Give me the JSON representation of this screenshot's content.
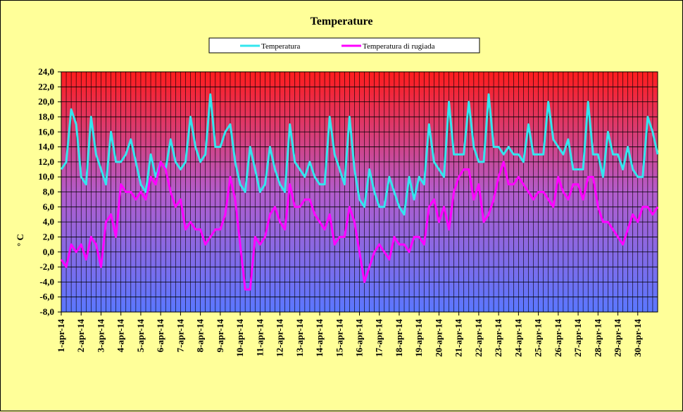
{
  "chart_data": {
    "type": "line",
    "title": "Temperature",
    "ylabel": "° C",
    "xlabel": "",
    "ylim": [
      -8,
      24
    ],
    "y_ticks": [
      "24,0",
      "22,0",
      "20,0",
      "18,0",
      "16,0",
      "14,0",
      "12,0",
      "10,0",
      "8,0",
      "6,0",
      "4,0",
      "2,0",
      "0,0",
      "-2,0",
      "-4,0",
      "-6,0",
      "-8,0"
    ],
    "categories": [
      "1-apr-14",
      "2-apr-14",
      "3-apr-14",
      "4-apr-14",
      "5-apr-14",
      "6-apr-14",
      "7-apr-14",
      "8-apr-14",
      "9-apr-14",
      "10-apr-14",
      "11-apr-14",
      "12-apr-14",
      "13-apr-14",
      "14-apr-14",
      "15-apr-14",
      "16-apr-14",
      "17-apr-14",
      "18-apr-14",
      "19-apr-14",
      "20-apr-14",
      "21-apr-14",
      "22-apr-14",
      "23-apr-14",
      "24-apr-14",
      "25-apr-14",
      "26-apr-14",
      "27-apr-14",
      "28-apr-14",
      "29-apr-14",
      "30-apr-14"
    ],
    "grid": true,
    "legend_position": "top-center",
    "series": [
      {
        "name": "Temperatura",
        "color": "#33e6ee",
        "x": [
          1,
          1.25,
          1.5,
          1.75,
          2,
          2.25,
          2.5,
          2.75,
          3,
          3.25,
          3.5,
          3.75,
          4,
          4.25,
          4.5,
          4.75,
          5,
          5.25,
          5.5,
          5.75,
          6,
          6.25,
          6.5,
          6.75,
          7,
          7.25,
          7.5,
          7.75,
          8,
          8.25,
          8.5,
          8.75,
          9,
          9.25,
          9.5,
          9.75,
          10,
          10.25,
          10.5,
          10.75,
          11,
          11.25,
          11.5,
          11.75,
          12,
          12.25,
          12.5,
          12.75,
          13,
          13.25,
          13.5,
          13.75,
          14,
          14.25,
          14.5,
          14.75,
          15,
          15.25,
          15.5,
          15.75,
          16,
          16.25,
          16.5,
          16.75,
          17,
          17.25,
          17.5,
          17.75,
          18,
          18.25,
          18.5,
          18.75,
          19,
          19.25,
          19.5,
          19.75,
          20,
          20.25,
          20.5,
          20.75,
          21,
          21.25,
          21.5,
          21.75,
          22,
          22.25,
          22.5,
          22.75,
          23,
          23.25,
          23.5,
          23.75,
          24,
          24.25,
          24.5,
          24.75,
          25,
          25.25,
          25.5,
          25.75,
          26,
          26.25,
          26.5,
          26.75,
          27,
          27.25,
          27.5,
          27.75,
          28,
          28.25,
          28.5,
          28.75,
          29,
          29.25,
          29.5,
          29.75,
          30,
          30.25,
          30.5,
          30.75,
          31
        ],
        "values": [
          11,
          12,
          19,
          17,
          10,
          9,
          18,
          13,
          11,
          9,
          16,
          12,
          12,
          13,
          15,
          12,
          9,
          8,
          13,
          10,
          12,
          11,
          15,
          12,
          11,
          12,
          18,
          14,
          12,
          13,
          21,
          14,
          14,
          16,
          17,
          12,
          9,
          8,
          14,
          11,
          8,
          9,
          14,
          11,
          9,
          8,
          17,
          12,
          11,
          10,
          12,
          10,
          9,
          9,
          18,
          13,
          11,
          9,
          18,
          11,
          7,
          6,
          11,
          8,
          6,
          6,
          10,
          8,
          6,
          5,
          10,
          7,
          10,
          9,
          17,
          12,
          11,
          10,
          20,
          13,
          13,
          13,
          20,
          14,
          12,
          12,
          21,
          14,
          14,
          13,
          14,
          13,
          13,
          12,
          17,
          13,
          13,
          13,
          20,
          15,
          14,
          13,
          15,
          11,
          11,
          11,
          20,
          13,
          13,
          10,
          16,
          13,
          13,
          11,
          14,
          11,
          10,
          10,
          18,
          16,
          13
        ]
      },
      {
        "name": "Temperatura di rugiada",
        "color": "#ff00ff",
        "x": [
          1,
          1.25,
          1.5,
          1.75,
          2,
          2.25,
          2.5,
          2.75,
          3,
          3.25,
          3.5,
          3.75,
          4,
          4.25,
          4.5,
          4.75,
          5,
          5.25,
          5.5,
          5.75,
          6,
          6.25,
          6.5,
          6.75,
          7,
          7.25,
          7.5,
          7.75,
          8,
          8.25,
          8.5,
          8.75,
          9,
          9.25,
          9.5,
          9.75,
          10,
          10.25,
          10.5,
          10.75,
          11,
          11.25,
          11.5,
          11.75,
          12,
          12.25,
          12.5,
          12.75,
          13,
          13.25,
          13.5,
          13.75,
          14,
          14.25,
          14.5,
          14.75,
          15,
          15.25,
          15.5,
          15.75,
          16,
          16.25,
          16.5,
          16.75,
          17,
          17.25,
          17.5,
          17.75,
          18,
          18.25,
          18.5,
          18.75,
          19,
          19.25,
          19.5,
          19.75,
          20,
          20.25,
          20.5,
          20.75,
          21,
          21.25,
          21.5,
          21.75,
          22,
          22.25,
          22.5,
          22.75,
          23,
          23.25,
          23.5,
          23.75,
          24,
          24.25,
          24.5,
          24.75,
          25,
          25.25,
          25.5,
          25.75,
          26,
          26.25,
          26.5,
          26.75,
          27,
          27.25,
          27.5,
          27.75,
          28,
          28.25,
          28.5,
          28.75,
          29,
          29.25,
          29.5,
          29.75,
          30,
          30.25,
          30.5,
          30.75,
          31
        ],
        "values": [
          -1,
          -2,
          1,
          0,
          1,
          -1,
          2,
          1,
          -2,
          4,
          5,
          2,
          9,
          8,
          8,
          7,
          8,
          7,
          10,
          9,
          12,
          11,
          8,
          6,
          7,
          3,
          4,
          3,
          3,
          1,
          2,
          3,
          3,
          5,
          10,
          7,
          1,
          -5,
          -5,
          2,
          1,
          2,
          5,
          6,
          4,
          3,
          9,
          6,
          6,
          7,
          7,
          5,
          4,
          3,
          5,
          1,
          2,
          2,
          6,
          4,
          0,
          -4,
          -2,
          0,
          1,
          0,
          -1,
          2,
          1,
          1,
          0,
          2,
          2,
          1,
          6,
          7,
          4,
          6,
          3,
          8,
          10,
          11,
          11,
          7,
          9,
          4,
          5,
          7,
          10,
          12,
          9,
          9,
          10,
          9,
          8,
          7,
          8,
          8,
          7,
          6,
          10,
          8,
          7,
          9,
          9,
          7,
          10,
          10,
          6,
          4,
          4,
          3,
          2,
          1,
          3,
          5,
          4,
          6,
          6,
          5,
          6
        ]
      }
    ]
  }
}
